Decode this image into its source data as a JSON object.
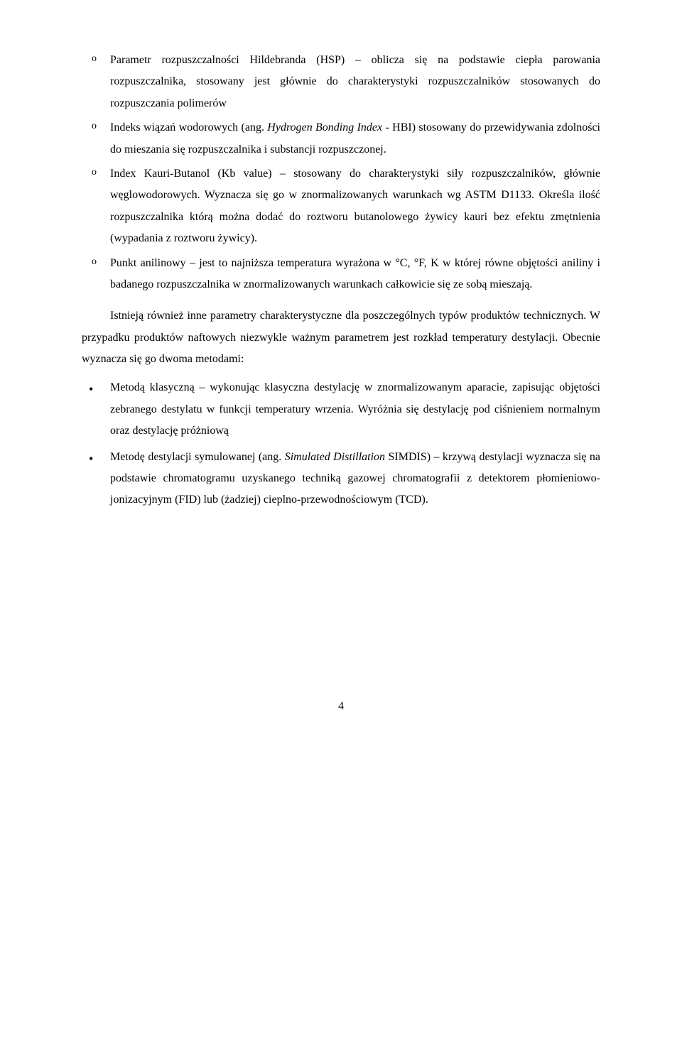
{
  "sub_items": [
    {
      "prefix": "Parametr rozpuszczalności Hildebranda (HSP) – oblicza się na podstawie ciepła parowania rozpuszczalnika, stosowany jest głównie do charakterystyki rozpuszczalników stosowanych do rozpuszczania polimerów"
    },
    {
      "prefix": "Indeks wiązań wodorowych (ang. ",
      "italic": "Hydrogen Bonding Index",
      "suffix": " - HBI) stosowany do przewidywania zdolności do mieszania się rozpuszczalnika i substancji rozpuszczonej."
    },
    {
      "prefix": "Index Kauri-Butanol (Kb value) – stosowany do charakterystyki siły rozpuszczalników, głównie węglowodorowych. Wyznacza się go w znormalizowanych warunkach wg ASTM D1133. Określa ilość rozpuszczalnika którą można dodać do roztworu butanolowego żywicy kauri bez efektu zmętnienia (wypadania z roztworu żywicy)."
    },
    {
      "prefix": "Punkt anilinowy – jest to najniższa temperatura wyrażona w °C, °F, K w której równe objętości aniliny i badanego rozpuszczalnika w znormalizowanych warunkach całkowicie się ze sobą mieszają."
    }
  ],
  "paragraph": "Istnieją również inne parametry charakterystyczne dla poszczególnych typów produktów technicznych. W przypadku produktów naftowych niezwykle ważnym parametrem jest rozkład temperatury destylacji. Obecnie wyznacza się go dwoma metodami:",
  "bullets": [
    {
      "prefix": "Metodą klasyczną – wykonując klasyczna destylację w znormalizowanym aparacie, zapisując objętości zebranego destylatu w funkcji temperatury wrzenia. Wyróżnia się destylację pod ciśnieniem normalnym oraz destylację próżniową"
    },
    {
      "prefix": "Metodę destylacji symulowanej (ang. ",
      "italic": "Simulated Distillation",
      "suffix": " SIMDIS) – krzywą destylacji wyznacza się na podstawie chromatogramu uzyskanego techniką gazowej chromatografii z detektorem płomieniowo-jonizacyjnym (FID) lub (żadziej) cieplno-przewodnościowym (TCD)."
    }
  ],
  "page_number": "4"
}
